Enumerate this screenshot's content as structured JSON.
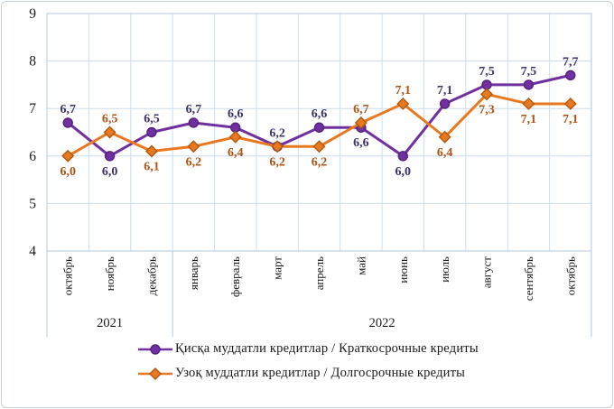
{
  "chart_data": {
    "type": "line",
    "title": "",
    "categories": [
      "октябрь",
      "ноябрь",
      "декабрь",
      "январь",
      "февраль",
      "март",
      "апрель",
      "май",
      "июнь",
      "июль",
      "август",
      "сентябрь",
      "октябрь"
    ],
    "year_groups": [
      {
        "label": "2021",
        "from": 0,
        "to": 2
      },
      {
        "label": "2022",
        "from": 3,
        "to": 12
      }
    ],
    "y_ticks": [
      4,
      5,
      6,
      7,
      8,
      9
    ],
    "ylim": [
      4,
      9
    ],
    "grid": true,
    "legend_position": "bottom",
    "decimal_separator": ",",
    "series": [
      {
        "name": "Қисқа муддатли кредитлар / Краткосрочные кредиты",
        "marker": "circle",
        "color": "#7030A0",
        "marker_stroke": "#54217C",
        "label_color": "#3F3268",
        "values": [
          6.7,
          6.0,
          6.5,
          6.7,
          6.6,
          6.2,
          6.6,
          6.6,
          6.0,
          7.1,
          7.5,
          7.5,
          7.7
        ]
      },
      {
        "name": "Узоқ муддатли кредитлар / Долгосрочные кредиты",
        "marker": "diamond",
        "color": "#E8791F",
        "marker_stroke": "#B05810",
        "label_color": "#AF5415",
        "values": [
          6.0,
          6.5,
          6.1,
          6.2,
          6.4,
          6.2,
          6.2,
          6.7,
          7.1,
          6.4,
          7.3,
          7.1,
          7.1
        ]
      }
    ]
  },
  "colors": {
    "grid": "#CBDDF0",
    "plot_frame": "#AFC8E2",
    "axis_text": "#1a1a1a",
    "outer_border": "#C5D0DC"
  }
}
